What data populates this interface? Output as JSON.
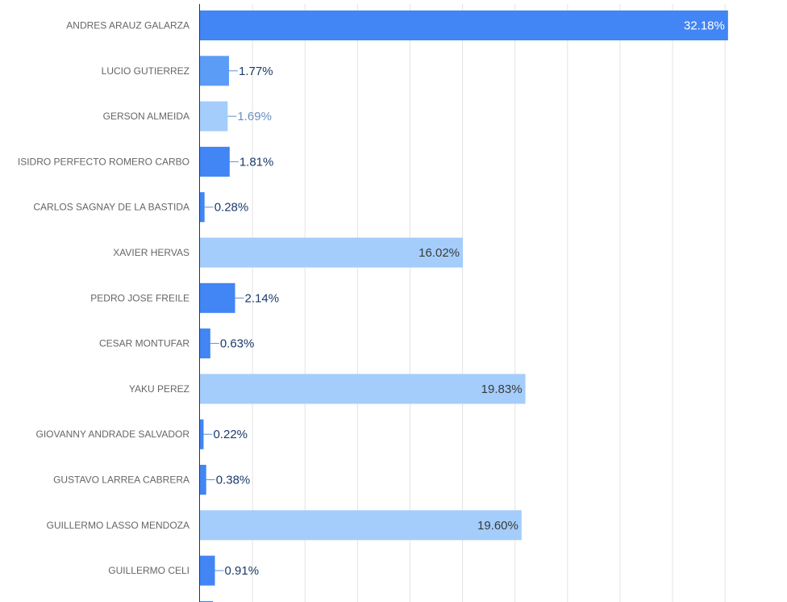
{
  "chart_data": {
    "type": "bar",
    "orientation": "horizontal",
    "categories": [
      "ANDRES ARAUZ GALARZA",
      "LUCIO GUTIERREZ",
      "GERSON ALMEIDA",
      "ISIDRO PERFECTO ROMERO CARBO",
      "CARLOS SAGNAY DE LA BASTIDA",
      "XAVIER HERVAS",
      "PEDRO JOSE FREILE",
      "CESAR MONTUFAR",
      "YAKU PEREZ",
      "GIOVANNY ANDRADE SALVADOR",
      "GUSTAVO LARREA CABRERA",
      "GUILLERMO LASSO MENDOZA",
      "GUILLERMO CELI"
    ],
    "values": [
      32.18,
      1.77,
      1.69,
      1.81,
      0.28,
      16.02,
      2.14,
      0.63,
      19.83,
      0.22,
      0.38,
      19.6,
      0.91
    ],
    "value_labels": [
      "32.18%",
      "1.77%",
      "1.69%",
      "1.81%",
      "0.28%",
      "16.02%",
      "2.14%",
      "0.63%",
      "19.83%",
      "0.22%",
      "0.38%",
      "19.60%",
      "0.91%"
    ],
    "bar_colors": [
      "#4285f4",
      "#5b9cf7",
      "#a4cdfb",
      "#4285f4",
      "#4285f4",
      "#a4cdfb",
      "#4285f4",
      "#4285f4",
      "#a4cdfb",
      "#4285f4",
      "#4285f4",
      "#a4cdfb",
      "#4285f4"
    ],
    "label_colors": [
      "#ffffff",
      "#1a3a6b",
      "#6b8fbf",
      "#1a3a6b",
      "#1a3a6b",
      "#3a3a3a",
      "#1a3a6b",
      "#1a3a6b",
      "#3a3a3a",
      "#1a3a6b",
      "#1a3a6b",
      "#3a3a3a",
      "#1a3a6b"
    ],
    "xlim": [
      0,
      32
    ],
    "x_gridline_step": 3.2,
    "grid": true,
    "title": "",
    "xlabel": "",
    "ylabel": ""
  }
}
